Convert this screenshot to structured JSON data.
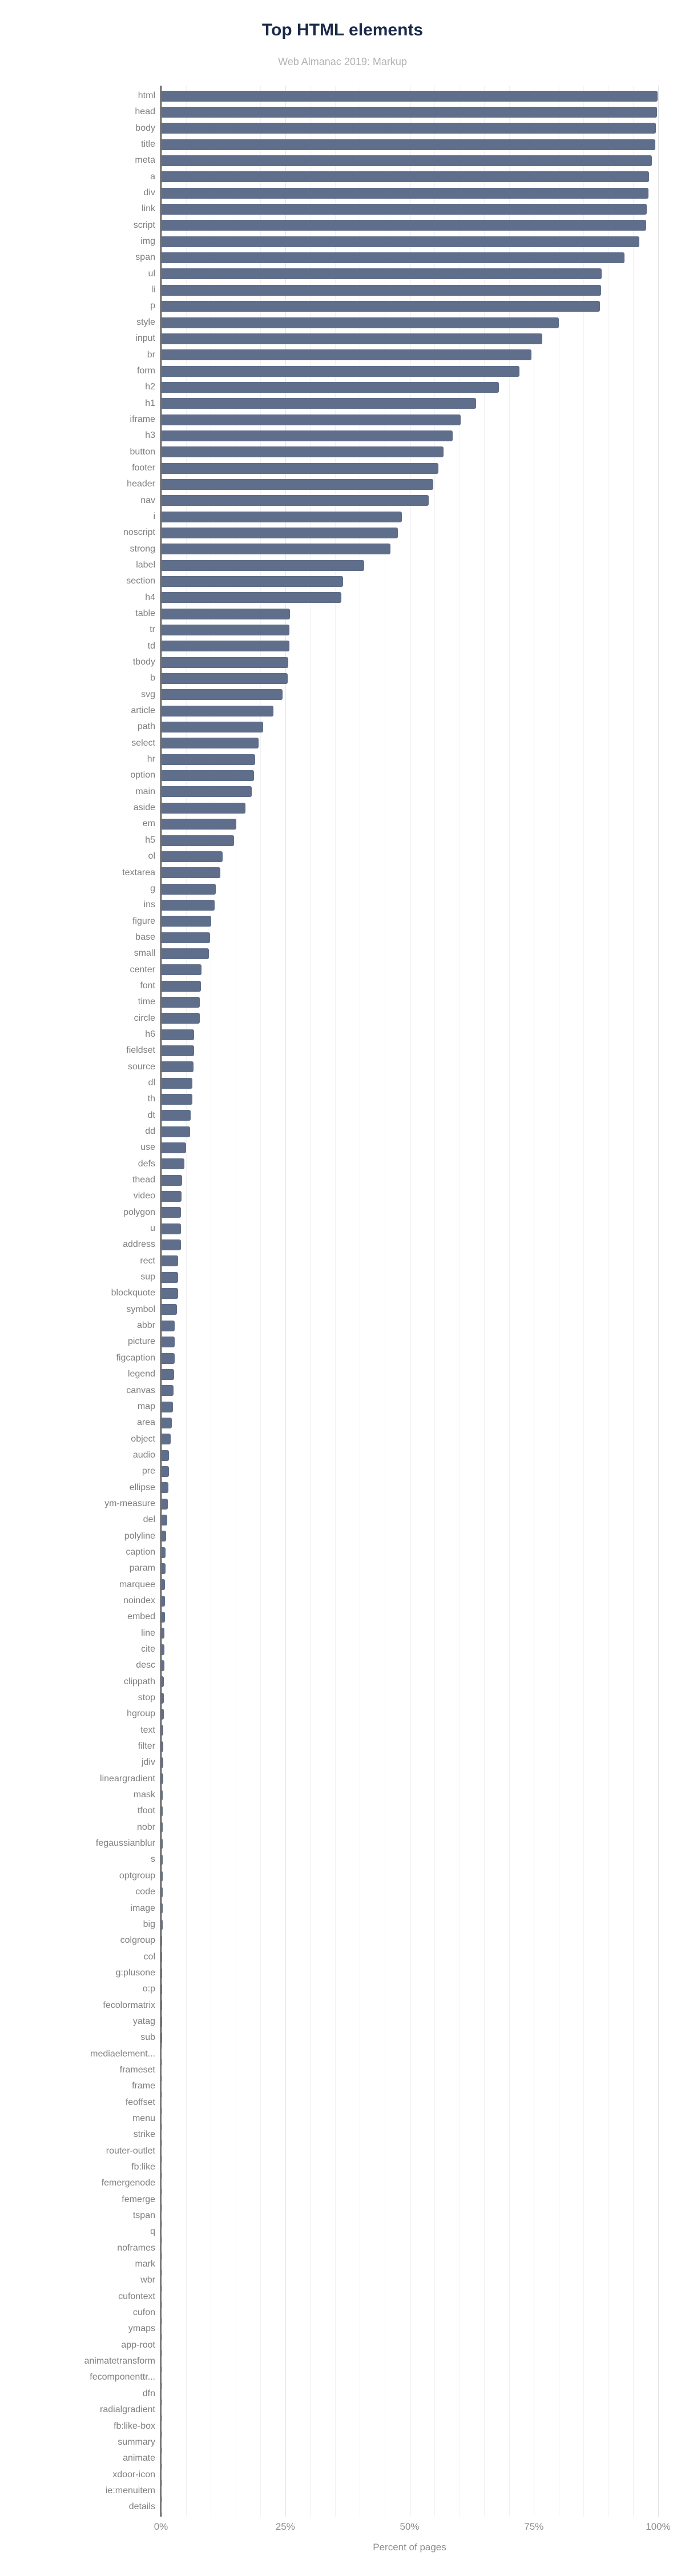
{
  "title": "Top HTML elements",
  "subtitle": "Web Almanac 2019: Markup",
  "colors": {
    "title": "#1a2b49",
    "subtitle": "#b3b3b3",
    "labels": "#7f7f7f",
    "bar": "#5f6e8a",
    "axis_line": "#3c3c3c",
    "gridline_minor": "#f1f1f1",
    "gridline_major": "#e4e4e4"
  },
  "chart_data": {
    "type": "bar",
    "orientation": "horizontal",
    "title": "Top HTML elements",
    "subtitle": "Web Almanac 2019: Markup",
    "xlabel": "Percent of pages",
    "xlim": [
      0,
      100
    ],
    "x_ticks": [
      "0%",
      "25%",
      "50%",
      "75%",
      "100%"
    ],
    "grid": {
      "minor_step_pct": 5,
      "major_step_pct": 25,
      "on": true
    },
    "legend": "none",
    "bar_color": "#5f6e8a",
    "categories": [
      "html",
      "head",
      "body",
      "title",
      "meta",
      "a",
      "div",
      "link",
      "script",
      "img",
      "span",
      "ul",
      "li",
      "p",
      "style",
      "input",
      "br",
      "form",
      "h2",
      "h1",
      "iframe",
      "h3",
      "button",
      "footer",
      "header",
      "nav",
      "i",
      "noscript",
      "strong",
      "label",
      "section",
      "h4",
      "table",
      "tr",
      "td",
      "tbody",
      "b",
      "svg",
      "article",
      "path",
      "select",
      "hr",
      "option",
      "main",
      "aside",
      "em",
      "h5",
      "ol",
      "textarea",
      "g",
      "ins",
      "figure",
      "base",
      "small",
      "center",
      "font",
      "time",
      "circle",
      "h6",
      "fieldset",
      "source",
      "dl",
      "th",
      "dt",
      "dd",
      "use",
      "defs",
      "thead",
      "video",
      "polygon",
      "u",
      "address",
      "rect",
      "sup",
      "blockquote",
      "symbol",
      "abbr",
      "picture",
      "figcaption",
      "legend",
      "canvas",
      "map",
      "area",
      "object",
      "audio",
      "pre",
      "ellipse",
      "ym-measure",
      "del",
      "polyline",
      "caption",
      "param",
      "marquee",
      "noindex",
      "embed",
      "line",
      "cite",
      "desc",
      "clippath",
      "stop",
      "hgroup",
      "text",
      "filter",
      "jdiv",
      "lineargradient",
      "mask",
      "tfoot",
      "nobr",
      "fegaussianblur",
      "s",
      "optgroup",
      "code",
      "image",
      "big",
      "colgroup",
      "col",
      "g:plusone",
      "o:p",
      "fecolormatrix",
      "yatag",
      "sub",
      "mediaelement...",
      "frameset",
      "frame",
      "feoffset",
      "menu",
      "strike",
      "router-outlet",
      "fb:like",
      "femergenode",
      "femerge",
      "tspan",
      "q",
      "noframes",
      "mark",
      "wbr",
      "cufontext",
      "cufon",
      "ymaps",
      "app-root",
      "animatetransform",
      "fecomponenttr...",
      "dfn",
      "radialgradient",
      "fb:like-box",
      "summary",
      "animate",
      "xdoor-icon",
      "ie:menuitem",
      "details"
    ],
    "values": [
      99.9,
      99.8,
      99.5,
      99.4,
      98.7,
      98.2,
      98.1,
      97.7,
      97.6,
      96.2,
      93.2,
      88.6,
      88.5,
      88.3,
      80.0,
      76.7,
      74.5,
      72.1,
      68.0,
      63.4,
      60.3,
      58.7,
      56.8,
      55.8,
      54.8,
      53.9,
      48.4,
      47.6,
      46.1,
      40.9,
      36.6,
      36.3,
      26.0,
      25.8,
      25.8,
      25.6,
      25.5,
      24.5,
      22.6,
      20.6,
      19.6,
      19.0,
      18.7,
      18.3,
      17.0,
      15.2,
      14.7,
      12.4,
      11.9,
      11.0,
      10.8,
      10.1,
      9.9,
      9.6,
      8.2,
      8.0,
      7.8,
      7.8,
      6.7,
      6.7,
      6.5,
      6.3,
      6.3,
      6.0,
      5.8,
      5.0,
      4.7,
      4.2,
      4.1,
      4.0,
      4.0,
      4.0,
      3.4,
      3.4,
      3.4,
      3.2,
      2.8,
      2.7,
      2.7,
      2.6,
      2.5,
      2.4,
      2.2,
      1.9,
      1.6,
      1.6,
      1.5,
      1.4,
      1.3,
      1.0,
      0.9,
      0.9,
      0.85,
      0.8,
      0.75,
      0.7,
      0.7,
      0.65,
      0.6,
      0.6,
      0.55,
      0.5,
      0.5,
      0.45,
      0.45,
      0.4,
      0.4,
      0.4,
      0.35,
      0.35,
      0.3,
      0.3,
      0.3,
      0.3,
      0.25,
      0.25,
      0.25,
      0.2,
      0.2,
      0.2,
      0.2,
      0.15,
      0.15,
      0.15,
      0.15,
      0.15,
      0.12,
      0.12,
      0.1,
      0.1,
      0.1,
      0.1,
      0.1,
      0.1,
      0.08,
      0.06,
      0.06,
      0.05,
      0.05,
      0.05,
      0.05,
      0.04,
      0.04,
      0.04,
      0.03,
      0.03,
      0.03,
      0.02,
      0.02,
      0.02
    ]
  }
}
